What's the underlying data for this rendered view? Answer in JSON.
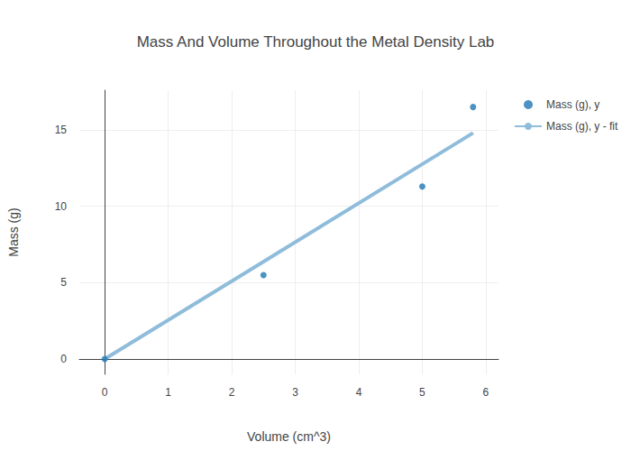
{
  "chart_data": {
    "type": "scatter",
    "title": "Mass And Volume Throughout the Metal Density Lab",
    "x_label": "Volume (cm^3)",
    "y_label": "Mass (g)",
    "series": [
      {
        "name": "Mass (g), y",
        "type": "scatter",
        "marker": "circle",
        "color": "#1f77b4",
        "x": [
          0,
          2.5,
          5,
          5.8
        ],
        "values": [
          0,
          5.5,
          11.3,
          16.5
        ]
      },
      {
        "name": "Mass (g), y - fit",
        "type": "line",
        "line_style": "solid",
        "color": "#8fbcdb",
        "x": [
          0,
          5.8
        ],
        "values": [
          0,
          14.8
        ]
      }
    ],
    "xlim": [
      -0.4,
      6.2
    ],
    "xticks": [
      0,
      1,
      2,
      3,
      4,
      5,
      6
    ],
    "ylim": [
      -1,
      17.6
    ],
    "yticks": [
      0,
      5,
      10,
      15
    ],
    "grid": true,
    "legend": "top right"
  }
}
